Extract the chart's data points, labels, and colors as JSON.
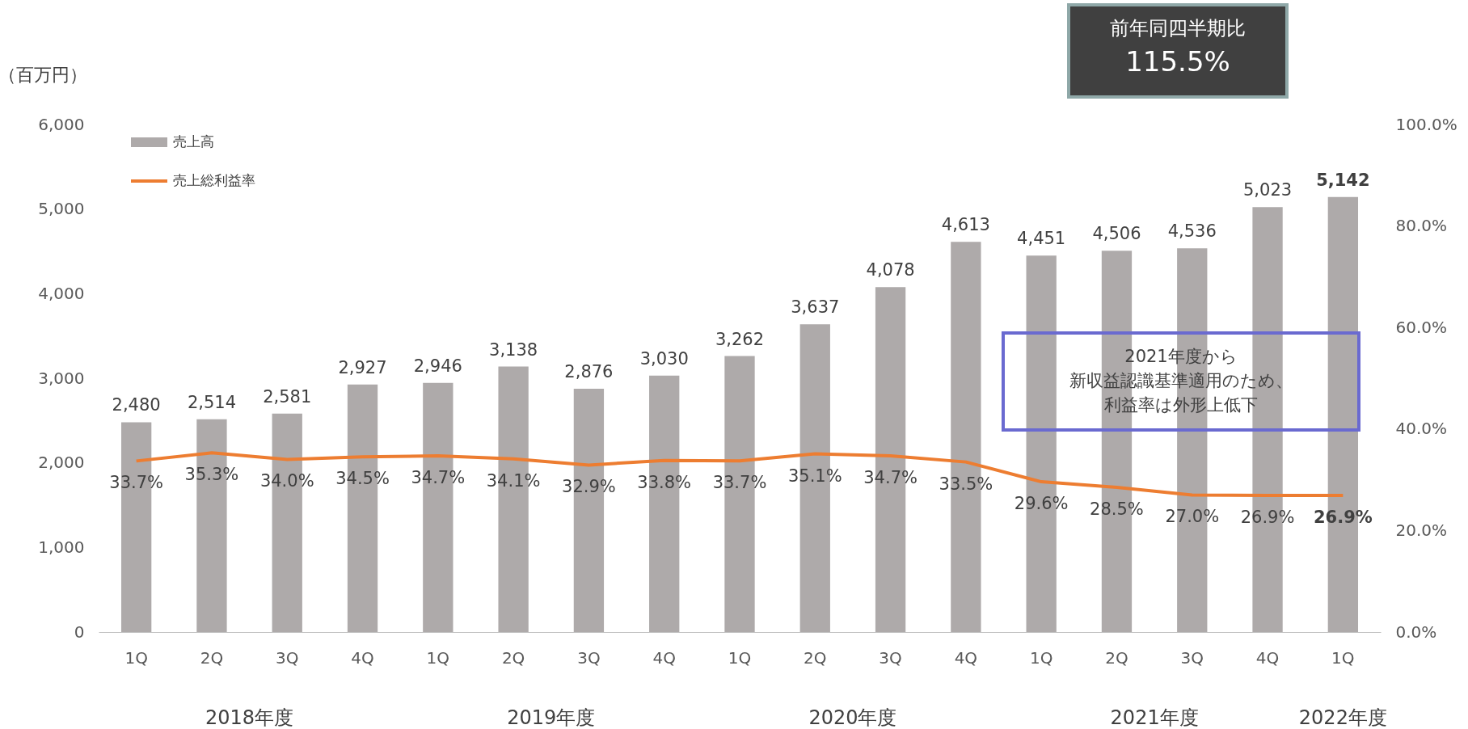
{
  "chart_data": {
    "type": "bar",
    "ylabel": "（百万円）",
    "categories": [
      "1Q",
      "2Q",
      "3Q",
      "4Q",
      "1Q",
      "2Q",
      "3Q",
      "4Q",
      "1Q",
      "2Q",
      "3Q",
      "4Q",
      "1Q",
      "2Q",
      "3Q",
      "4Q",
      "1Q"
    ],
    "series": [
      {
        "name": "売上高",
        "color": "#aeaaaa",
        "values": [
          2480,
          2514,
          2581,
          2927,
          2946,
          3138,
          2876,
          3030,
          3262,
          3637,
          4078,
          4613,
          4451,
          4506,
          4536,
          5023,
          5142
        ],
        "value_labels": [
          "2,480",
          "2,514",
          "2,581",
          "2,927",
          "2,946",
          "3,138",
          "2,876",
          "3,030",
          "3,262",
          "3,637",
          "4,078",
          "4,613",
          "4,451",
          "4,506",
          "4,536",
          "5,023",
          "5,142"
        ]
      },
      {
        "name": "売上総利益率",
        "type": "line",
        "axis": "y2",
        "color": "#ed7d31",
        "values": [
          33.7,
          35.3,
          34.0,
          34.5,
          34.7,
          34.1,
          32.9,
          33.8,
          33.7,
          35.1,
          34.7,
          33.5,
          29.6,
          28.5,
          27.0,
          26.9,
          26.9
        ],
        "value_labels": [
          "33.7%",
          "35.3%",
          "34.0%",
          "34.5%",
          "34.7%",
          "34.1%",
          "32.9%",
          "33.8%",
          "33.7%",
          "35.1%",
          "34.7%",
          "33.5%",
          "29.6%",
          "28.5%",
          "27.0%",
          "26.9%",
          "26.9%"
        ]
      }
    ],
    "ylim": [
      0,
      6000
    ],
    "yticks": [
      {
        "value": 0,
        "label": "0"
      },
      {
        "value": 1000,
        "label": "1,000"
      },
      {
        "value": 2000,
        "label": "2,000"
      },
      {
        "value": 3000,
        "label": "3,000"
      },
      {
        "value": 4000,
        "label": "4,000"
      },
      {
        "value": 5000,
        "label": "5,000"
      },
      {
        "value": 6000,
        "label": "6,000"
      }
    ],
    "y2lim": [
      0,
      100
    ],
    "y2ticks": [
      {
        "value": 0,
        "label": "0.0%"
      },
      {
        "value": 20,
        "label": "20.0%"
      },
      {
        "value": 40,
        "label": "40.0%"
      },
      {
        "value": 60,
        "label": "60.0%"
      },
      {
        "value": 80,
        "label": "80.0%"
      },
      {
        "value": 100,
        "label": "100.0%"
      }
    ],
    "legend": "top left",
    "grid": false,
    "annotations": [
      "2018年度",
      "2019年度",
      "2020年度",
      "2021年度",
      "2022年度",
      "前年同四半期比",
      "115.5%",
      "2021年度から",
      "新収益認識基準適用のため、",
      "利益率は外形上低下"
    ]
  }
}
